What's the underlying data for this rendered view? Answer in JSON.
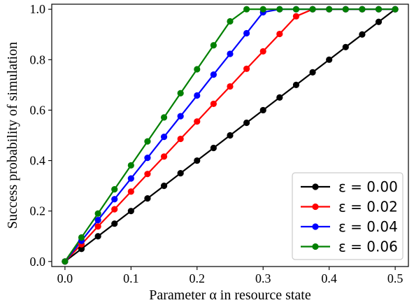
{
  "chart_data": {
    "type": "line",
    "title": "",
    "xlabel": "Parameter α in resource state",
    "ylabel": "Success probability of simulation",
    "xlim": [
      -0.02,
      0.52
    ],
    "ylim": [
      -0.02,
      1.02
    ],
    "xticks": [
      0.0,
      0.1,
      0.2,
      0.3,
      0.4,
      0.5
    ],
    "xtick_labels": [
      "0.0",
      "0.1",
      "0.2",
      "0.3",
      "0.4",
      "0.5"
    ],
    "yticks": [
      0.0,
      0.2,
      0.4,
      0.6,
      0.8,
      1.0
    ],
    "ytick_labels": [
      "0.0",
      "0.2",
      "0.4",
      "0.6",
      "0.8",
      "1.0"
    ],
    "grid": false,
    "legend_position": "bottom-right",
    "x": [
      0.0,
      0.025,
      0.05,
      0.075,
      0.1,
      0.125,
      0.15,
      0.175,
      0.2,
      0.225,
      0.25,
      0.275,
      0.3,
      0.325,
      0.35,
      0.375,
      0.4,
      0.425,
      0.45,
      0.475,
      0.5
    ],
    "series": [
      {
        "name": "ε = 0.00",
        "color": "#000000",
        "values": [
          0.0,
          0.05,
          0.1,
          0.15,
          0.2,
          0.25,
          0.3,
          0.35,
          0.4,
          0.45,
          0.5,
          0.55,
          0.6,
          0.65,
          0.7,
          0.75,
          0.8,
          0.85,
          0.9,
          0.95,
          1.0
        ]
      },
      {
        "name": "ε = 0.02",
        "color": "#ff0000",
        "values": [
          0.0,
          0.068,
          0.139,
          0.207,
          0.277,
          0.347,
          0.416,
          0.486,
          0.555,
          0.625,
          0.694,
          0.764,
          0.833,
          0.902,
          0.972,
          1.0,
          1.0,
          1.0,
          1.0,
          1.0,
          1.0
        ]
      },
      {
        "name": "ε = 0.04",
        "color": "#0000ff",
        "values": [
          0.0,
          0.082,
          0.164,
          0.247,
          0.329,
          0.411,
          0.494,
          0.576,
          0.658,
          0.741,
          0.823,
          0.905,
          0.988,
          1.0,
          1.0,
          1.0,
          1.0,
          1.0,
          1.0,
          1.0,
          1.0
        ]
      },
      {
        "name": "ε = 0.06",
        "color": "#008000",
        "values": [
          0.0,
          0.095,
          0.19,
          0.286,
          0.381,
          0.476,
          0.571,
          0.667,
          0.762,
          0.857,
          0.952,
          1.0,
          1.0,
          1.0,
          1.0,
          1.0,
          1.0,
          1.0,
          1.0,
          1.0,
          1.0
        ]
      }
    ]
  }
}
